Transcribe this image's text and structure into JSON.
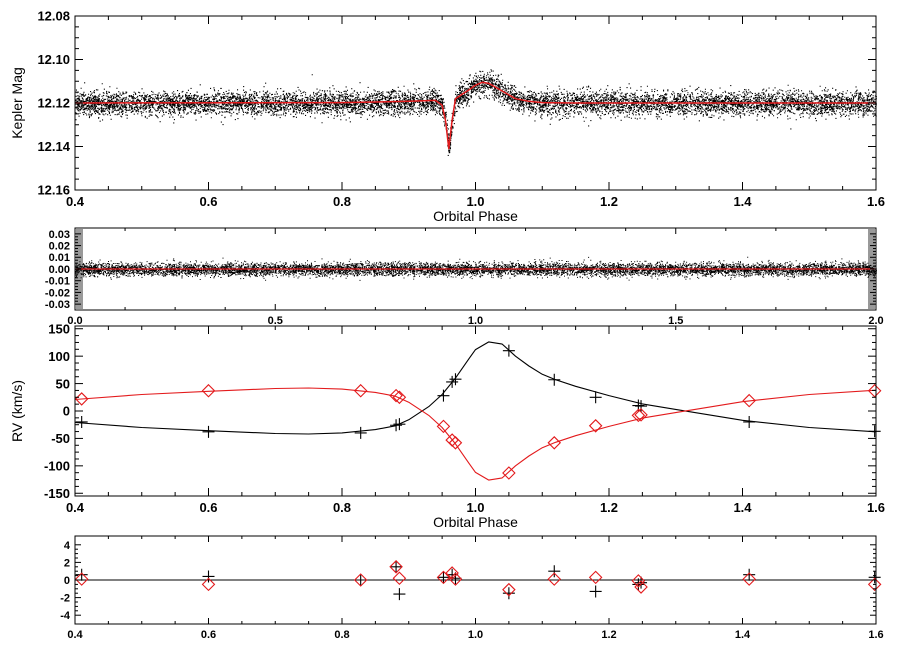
{
  "chart_data": [
    {
      "type": "scatter",
      "ylabel": "Kepler Mag",
      "xlabel": "Orbital Phase",
      "xlim": [
        0.4,
        1.6
      ],
      "ylim": [
        12.16,
        12.08
      ],
      "y_inverted": true,
      "xticks": [
        "0.4",
        "0.6",
        "0.8",
        "1.0",
        "1.2",
        "1.4",
        "1.6"
      ],
      "yticks": [
        "12.08",
        "12.10",
        "12.12",
        "12.14",
        "12.16"
      ],
      "ytick_values": [
        12.08,
        12.1,
        12.12,
        12.14,
        12.16
      ],
      "colors": {
        "points": "#000000",
        "model": "#e31a1c"
      },
      "scatter_band": {
        "center": 12.12,
        "halfwidth": 0.006
      },
      "model_curve": {
        "x": [
          0.4,
          0.8,
          0.9,
          0.94,
          0.95,
          0.955,
          0.96,
          0.965,
          0.97,
          0.98,
          0.99,
          1.0,
          1.01,
          1.02,
          1.04,
          1.06,
          1.08,
          1.1,
          1.15,
          1.6
        ],
        "y": [
          12.12,
          12.1198,
          12.1192,
          12.1188,
          12.121,
          12.128,
          12.141,
          12.128,
          12.118,
          12.116,
          12.114,
          12.1118,
          12.1105,
          12.111,
          12.1145,
          12.118,
          12.1192,
          12.1198,
          12.12,
          12.12
        ]
      }
    },
    {
      "type": "scatter",
      "xlim": [
        0.0,
        2.0
      ],
      "ylim": [
        -0.035,
        0.035
      ],
      "xticks": [
        "0.0",
        "0.5",
        "1.0",
        "1.5",
        "2.0"
      ],
      "yticks": [
        "0.03",
        "0.02",
        "0.01",
        "0.00",
        "-0.01",
        "-0.02",
        "-0.03"
      ],
      "ytick_values": [
        0.03,
        0.02,
        0.01,
        0.0,
        -0.01,
        -0.02,
        -0.03
      ],
      "colors": {
        "points": "#000000",
        "zero_line": "#e31a1c"
      },
      "scatter_band": {
        "center": 0.0,
        "halfwidth": 0.006
      },
      "zero_line": 0.0
    },
    {
      "type": "line",
      "ylabel": "RV (km/s)",
      "xlabel": "Orbital Phase",
      "xlim": [
        0.4,
        1.6
      ],
      "ylim": [
        -155,
        155
      ],
      "xticks": [
        "0.4",
        "0.6",
        "0.8",
        "1.0",
        "1.2",
        "1.4",
        "1.6"
      ],
      "yticks": [
        "150",
        "100",
        "50",
        "0",
        "-50",
        "-100",
        "-150"
      ],
      "ytick_values": [
        150,
        100,
        50,
        0,
        -50,
        -100,
        -150
      ],
      "colors": {
        "primary": "#000000",
        "secondary": "#e31a1c"
      },
      "series": [
        {
          "marker": "plus",
          "x": [
            0.41,
            0.6,
            0.828,
            0.881,
            0.886,
            0.952,
            0.965,
            0.97,
            1.05,
            1.118,
            1.18,
            1.244,
            1.248,
            1.41,
            1.598
          ],
          "y": [
            -20,
            -38,
            -40,
            -26,
            -24,
            28,
            53,
            58,
            110,
            57,
            25,
            10,
            9,
            -20,
            -37
          ]
        },
        {
          "marker": "diamond",
          "x": [
            0.41,
            0.6,
            0.828,
            0.881,
            0.886,
            0.952,
            0.965,
            0.97,
            1.05,
            1.118,
            1.18,
            1.244,
            1.248,
            1.41,
            1.598
          ],
          "y": [
            22,
            37,
            37,
            28,
            25,
            -28,
            -53,
            -58,
            -113,
            -58,
            -27,
            -8,
            -7,
            19,
            37
          ]
        }
      ],
      "model_primary": {
        "x": [
          0.4,
          0.5,
          0.6,
          0.7,
          0.75,
          0.8,
          0.85,
          0.88,
          0.9,
          0.93,
          0.95,
          0.97,
          0.99,
          1.0,
          1.02,
          1.04,
          1.06,
          1.08,
          1.1,
          1.12,
          1.15,
          1.2,
          1.25,
          1.3,
          1.4,
          1.5,
          1.6
        ],
        "y": [
          -21,
          -30,
          -36,
          -41,
          -42,
          -40,
          -34,
          -27,
          -16,
          8,
          30,
          60,
          95,
          112,
          126,
          122,
          100,
          82,
          67,
          57,
          45,
          28,
          13,
          3,
          -17,
          -30,
          -38
        ]
      },
      "model_secondary": {
        "x": [
          0.4,
          0.5,
          0.6,
          0.7,
          0.75,
          0.8,
          0.85,
          0.88,
          0.9,
          0.93,
          0.95,
          0.97,
          0.99,
          1.0,
          1.02,
          1.04,
          1.06,
          1.08,
          1.1,
          1.12,
          1.15,
          1.2,
          1.25,
          1.3,
          1.4,
          1.5,
          1.6
        ],
        "y": [
          21,
          30,
          36,
          41,
          42,
          40,
          34,
          27,
          16,
          -8,
          -30,
          -60,
          -95,
          -112,
          -126,
          -122,
          -100,
          -82,
          -67,
          -57,
          -45,
          -28,
          -13,
          -3,
          17,
          30,
          38
        ]
      }
    },
    {
      "type": "scatter",
      "xlim": [
        0.4,
        1.6
      ],
      "ylim": [
        -5,
        5
      ],
      "xticks": [
        "0.4",
        "0.6",
        "0.8",
        "1.0",
        "1.2",
        "1.4",
        "1.6"
      ],
      "yticks": [
        "4",
        "2",
        "0",
        "-2",
        "-4"
      ],
      "ytick_values": [
        4,
        2,
        0,
        -2,
        -4
      ],
      "colors": {
        "primary": "#000000",
        "secondary": "#e31a1c",
        "zero_line": "#000000"
      },
      "zero_line": 0.0,
      "series": [
        {
          "marker": "plus",
          "x": [
            0.41,
            0.6,
            0.828,
            0.881,
            0.886,
            0.952,
            0.965,
            0.97,
            1.05,
            1.118,
            1.18,
            1.244,
            1.248,
            1.41,
            1.598
          ],
          "y": [
            0.6,
            0.4,
            0.0,
            1.5,
            -1.6,
            0.3,
            0.6,
            0.2,
            -1.5,
            1.0,
            -1.3,
            -0.5,
            -0.3,
            0.6,
            0.3
          ]
        },
        {
          "marker": "diamond",
          "x": [
            0.41,
            0.6,
            0.828,
            0.881,
            0.886,
            0.952,
            0.965,
            0.97,
            1.05,
            1.118,
            1.18,
            1.244,
            1.248,
            1.41,
            1.598
          ],
          "y": [
            0.1,
            -0.5,
            0.0,
            1.5,
            0.2,
            0.3,
            0.8,
            0.1,
            -1.1,
            0.1,
            0.3,
            -0.1,
            -0.8,
            0.1,
            -0.5
          ]
        }
      ]
    }
  ]
}
